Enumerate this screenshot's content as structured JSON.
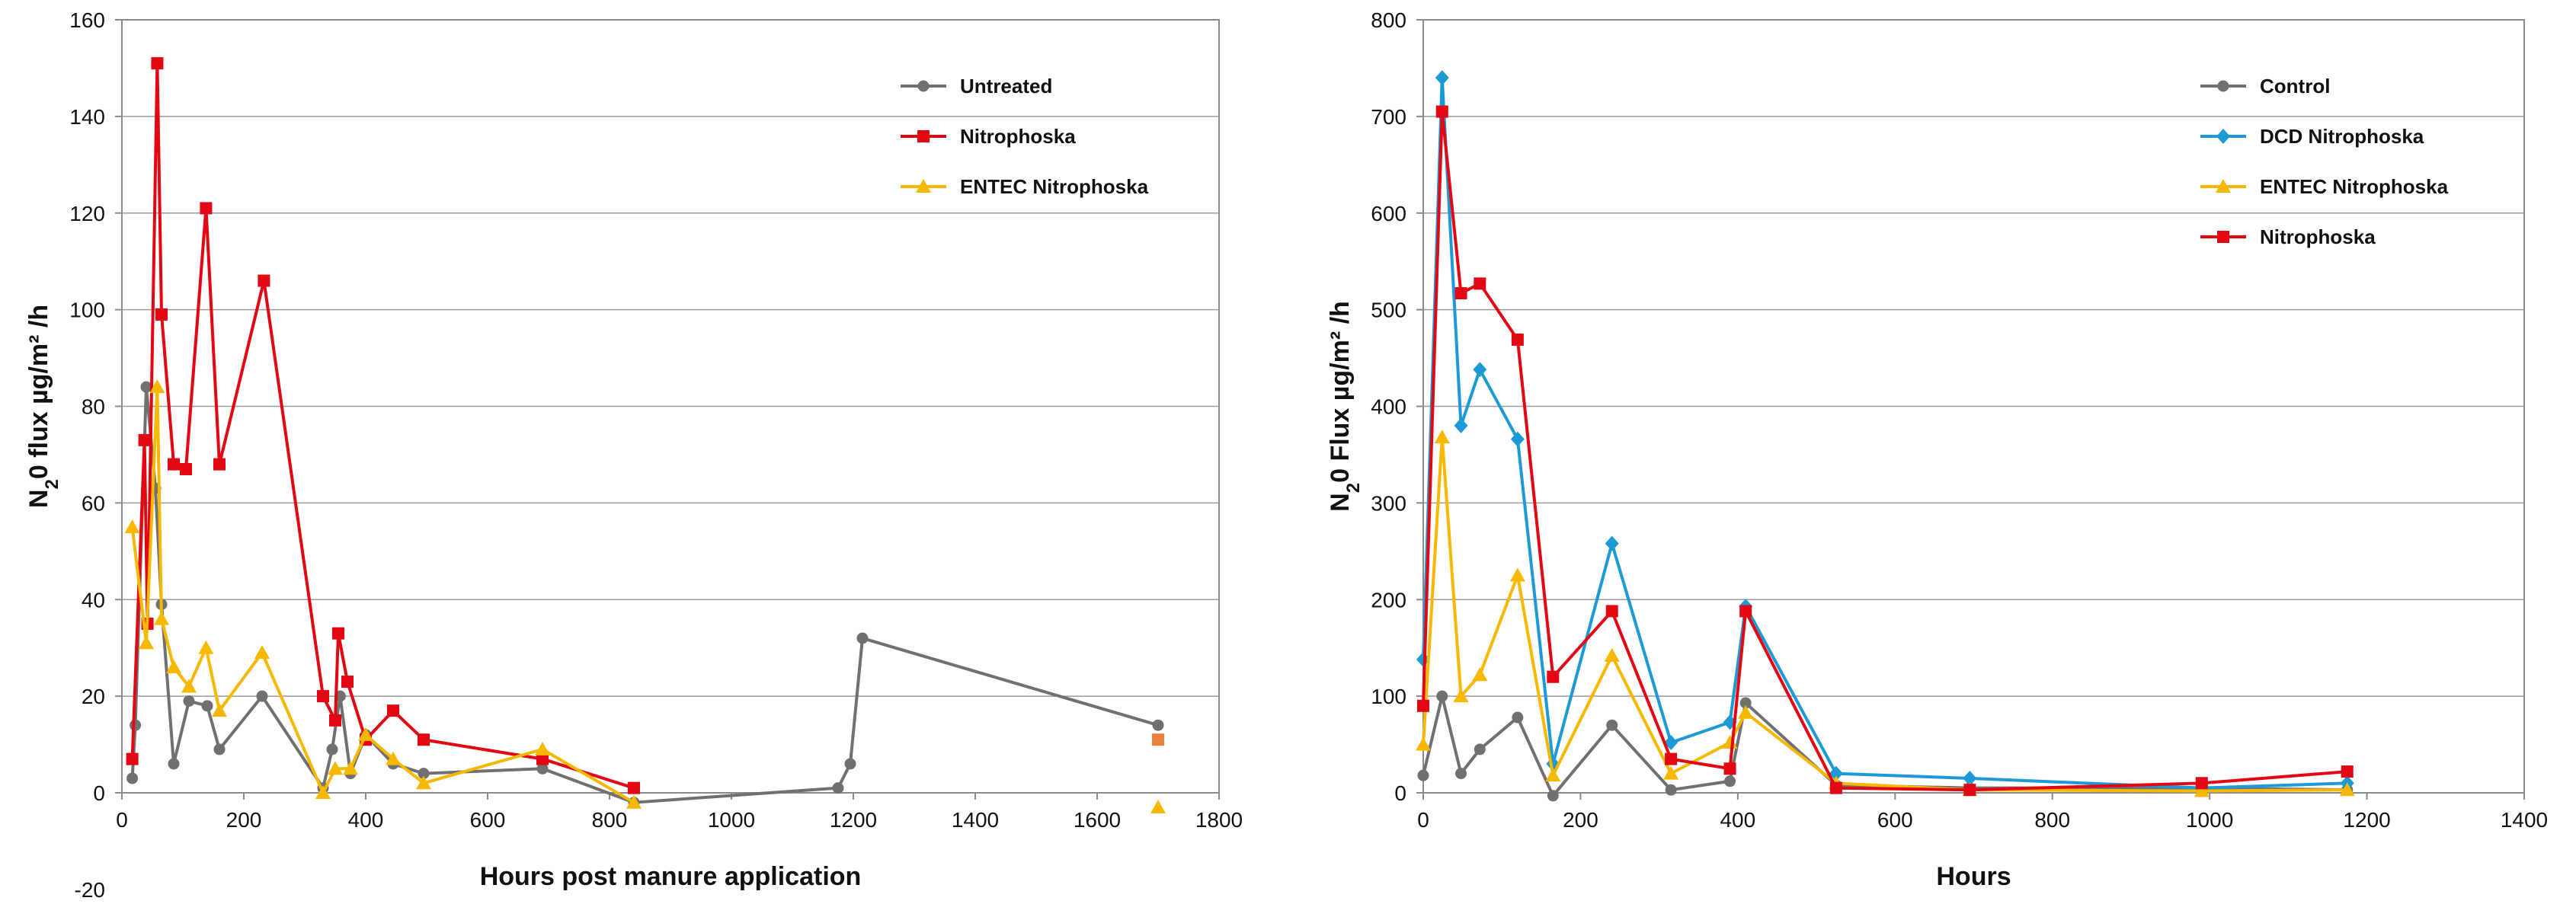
{
  "chart_data": [
    {
      "type": "line",
      "xlabel": "Hours post manure application",
      "ylabel_main": "N",
      "ylabel_sub": "2",
      "ylabel_rest": "0 flux µg/m² /h",
      "xlim": [
        0,
        1800
      ],
      "ylim": [
        0,
        160
      ],
      "xticks": [
        0,
        200,
        400,
        600,
        800,
        1000,
        1200,
        1400,
        1600,
        1800
      ],
      "yticks": [
        0,
        20,
        40,
        60,
        80,
        100,
        120,
        140,
        160
      ],
      "extra_ytick_label": "-20",
      "grid": true,
      "legend_position": "top-right",
      "series": [
        {
          "name": "Untreated",
          "color": "#707070",
          "marker": "circle",
          "x": [
            17,
            22,
            40,
            55,
            65,
            85,
            110,
            140,
            160,
            230,
            330,
            345,
            358,
            375,
            400,
            445,
            495,
            690,
            840,
            1175,
            1195,
            1215,
            1700
          ],
          "y": [
            3,
            14,
            84,
            63,
            39,
            6,
            19,
            18,
            9,
            20,
            1,
            9,
            20,
            4,
            12,
            6,
            4,
            5,
            -2,
            1,
            6,
            32,
            14
          ]
        },
        {
          "name": "Nitrophoska",
          "color": "#e30613",
          "marker": "square",
          "x": [
            17,
            37,
            42,
            58,
            65,
            85,
            105,
            138,
            160,
            233,
            330,
            350,
            355,
            370,
            400,
            445,
            495,
            690,
            840
          ],
          "y": [
            7,
            73,
            35,
            151,
            99,
            68,
            67,
            121,
            68,
            106,
            20,
            15,
            33,
            23,
            11,
            17,
            11,
            7,
            1
          ]
        },
        {
          "name": "ENTEC Nitrophoska",
          "color": "#f6b800",
          "marker": "triangle",
          "x": [
            17,
            40,
            58,
            65,
            85,
            110,
            138,
            160,
            230,
            330,
            350,
            375,
            400,
            445,
            495,
            690,
            840
          ],
          "y": [
            55,
            31,
            84,
            36,
            26,
            22,
            30,
            17,
            29,
            0,
            5,
            5,
            12,
            7,
            2,
            9,
            -2
          ]
        }
      ],
      "extra_points": [
        {
          "x": 1700,
          "y": 11,
          "color": "#e8823a",
          "marker": "square"
        },
        {
          "x": 1700,
          "y": -3,
          "color": "#f6b800",
          "marker": "triangle"
        }
      ]
    },
    {
      "type": "line",
      "xlabel": "Hours",
      "ylabel_main": "N",
      "ylabel_sub": "2",
      "ylabel_rest": "0 Flux µg/m² /h",
      "xlim": [
        0,
        1400
      ],
      "ylim": [
        0,
        800
      ],
      "xticks": [
        0,
        200,
        400,
        600,
        800,
        1000,
        1200,
        1400
      ],
      "yticks": [
        0,
        100,
        200,
        300,
        400,
        500,
        600,
        700,
        800
      ],
      "grid": true,
      "legend_position": "top-right",
      "series": [
        {
          "name": "Control",
          "color": "#707070",
          "marker": "circle",
          "x": [
            0,
            24,
            48,
            72,
            120,
            165,
            240,
            315,
            390,
            410,
            525,
            695,
            990,
            1175
          ],
          "y": [
            18,
            100,
            20,
            45,
            78,
            -3,
            70,
            3,
            12,
            93,
            8,
            5,
            5,
            3
          ]
        },
        {
          "name": "DCD Nitrophoska",
          "color": "#1b9ad6",
          "marker": "diamond",
          "x": [
            0,
            24,
            48,
            72,
            120,
            165,
            240,
            315,
            390,
            410,
            525,
            695,
            990,
            1175
          ],
          "y": [
            138,
            740,
            380,
            438,
            366,
            30,
            258,
            52,
            73,
            193,
            20,
            15,
            5,
            10
          ]
        },
        {
          "name": "ENTEC Nitrophoska",
          "color": "#f6b800",
          "marker": "triangle",
          "x": [
            0,
            24,
            48,
            72,
            120,
            165,
            240,
            315,
            390,
            410,
            525,
            695,
            990,
            1175
          ],
          "y": [
            50,
            368,
            100,
            122,
            225,
            18,
            142,
            20,
            52,
            83,
            10,
            3,
            2,
            3
          ]
        },
        {
          "name": "Nitrophoska",
          "color": "#e30613",
          "marker": "square",
          "x": [
            0,
            24,
            48,
            72,
            120,
            165,
            240,
            315,
            390,
            410,
            525,
            695,
            990,
            1175
          ],
          "y": [
            90,
            705,
            517,
            527,
            469,
            120,
            188,
            35,
            25,
            188,
            5,
            3,
            10,
            22
          ]
        }
      ]
    }
  ]
}
